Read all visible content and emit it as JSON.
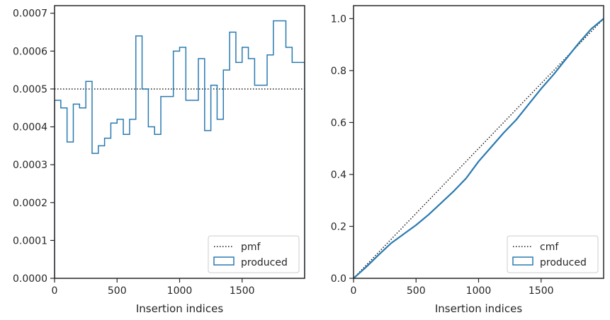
{
  "colors": {
    "series": "#2a7ab0",
    "reference": "#1a1a1a",
    "axes": "#262626"
  },
  "chart_data": [
    {
      "type": "line",
      "subtype": "step-histogram",
      "xlabel": "Insertion indices",
      "ylabel": "",
      "xlim": [
        0,
        2000
      ],
      "ylim": [
        0,
        0.00072
      ],
      "xticks": [
        0,
        500,
        1000,
        1500
      ],
      "xtick_labels": [
        "0",
        "500",
        "1000",
        "1500"
      ],
      "yticks": [
        0,
        0.0001,
        0.0002,
        0.0003,
        0.0004,
        0.0005,
        0.0006,
        0.0007
      ],
      "ytick_labels": [
        "0.0000",
        "0.0001",
        "0.0002",
        "0.0003",
        "0.0004",
        "0.0005",
        "0.0006",
        "0.0007"
      ],
      "grid": false,
      "legend_position": "lower-right",
      "series": [
        {
          "name": "pmf",
          "style": "dotted",
          "x": [
            0,
            2000
          ],
          "y": [
            0.0005,
            0.0005
          ]
        },
        {
          "name": "produced",
          "style": "step",
          "bin_edges": [
            0,
            50,
            100,
            150,
            200,
            250,
            300,
            350,
            400,
            450,
            500,
            550,
            600,
            650,
            700,
            750,
            800,
            850,
            900,
            950,
            1000,
            1050,
            1100,
            1150,
            1200,
            1250,
            1300,
            1350,
            1400,
            1450,
            1500,
            1550,
            1600,
            1650,
            1700,
            1750,
            1800,
            1850,
            1900,
            1950,
            2000
          ],
          "values": [
            0.00047,
            0.00045,
            0.00036,
            0.00046,
            0.00045,
            0.00052,
            0.00033,
            0.00035,
            0.00037,
            0.00041,
            0.00042,
            0.00038,
            0.00042,
            0.00064,
            0.0005,
            0.0004,
            0.00038,
            0.00048,
            0.00048,
            0.0006,
            0.00061,
            0.00047,
            0.00047,
            0.00058,
            0.00039,
            0.00051,
            0.00042,
            0.00055,
            0.00065,
            0.00057,
            0.00061,
            0.00058,
            0.00051,
            0.00051,
            0.00059,
            0.00068,
            0.00068,
            0.00061,
            0.00057,
            0.00057
          ]
        }
      ]
    },
    {
      "type": "line",
      "subtype": "step-cumulative",
      "xlabel": "Insertion indices",
      "ylabel": "",
      "xlim": [
        0,
        2000
      ],
      "ylim": [
        0,
        1.05
      ],
      "xticks": [
        0,
        500,
        1000,
        1500
      ],
      "xtick_labels": [
        "0",
        "500",
        "1000",
        "1500"
      ],
      "yticks": [
        0,
        0.2,
        0.4,
        0.6,
        0.8,
        1.0
      ],
      "ytick_labels": [
        "0.0",
        "0.2",
        "0.4",
        "0.6",
        "0.8",
        "1.0"
      ],
      "grid": false,
      "legend_position": "lower-right",
      "series": [
        {
          "name": "cmf",
          "style": "dotted",
          "x": [
            0,
            2000
          ],
          "y": [
            0,
            1.0
          ]
        },
        {
          "name": "produced",
          "style": "solid",
          "x": [
            0,
            100,
            200,
            300,
            400,
            500,
            600,
            700,
            800,
            900,
            1000,
            1100,
            1200,
            1300,
            1400,
            1500,
            1600,
            1700,
            1800,
            1900,
            2000
          ],
          "y": [
            0,
            0.043,
            0.09,
            0.135,
            0.17,
            0.205,
            0.245,
            0.29,
            0.335,
            0.385,
            0.45,
            0.505,
            0.56,
            0.61,
            0.67,
            0.73,
            0.785,
            0.845,
            0.905,
            0.96,
            1.0
          ]
        }
      ]
    }
  ]
}
